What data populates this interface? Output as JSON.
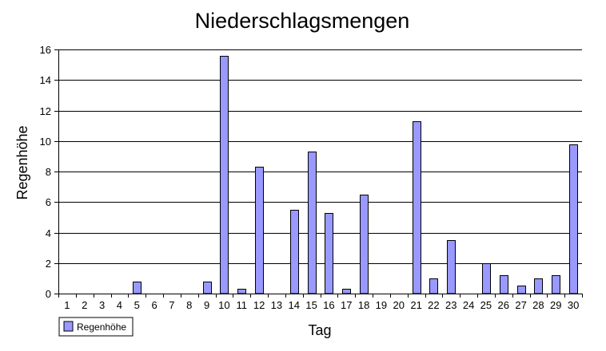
{
  "chart_data": {
    "type": "bar",
    "title": "Niederschlagsmengen",
    "xlabel": "Tag",
    "ylabel": "Regenhöhe",
    "ylim": [
      0,
      16
    ],
    "yticks": [
      0,
      2,
      4,
      6,
      8,
      10,
      12,
      14,
      16
    ],
    "grid": true,
    "legend_position": "bottom-left",
    "bar_color": "#9999ff",
    "categories": [
      "1",
      "2",
      "3",
      "4",
      "5",
      "6",
      "7",
      "8",
      "9",
      "10",
      "11",
      "12",
      "13",
      "14",
      "15",
      "16",
      "17",
      "18",
      "19",
      "20",
      "21",
      "22",
      "23",
      "24",
      "25",
      "26",
      "27",
      "28",
      "29",
      "30"
    ],
    "series": [
      {
        "name": "Regenhöhe",
        "values": [
          0,
          0,
          0,
          0,
          0.8,
          0,
          0,
          0,
          0.8,
          15.6,
          0.3,
          8.3,
          0,
          5.5,
          9.3,
          5.3,
          0.3,
          6.5,
          0,
          0,
          11.3,
          1.0,
          3.5,
          0,
          2.0,
          1.2,
          0.5,
          1.0,
          1.2,
          9.8
        ]
      }
    ]
  }
}
